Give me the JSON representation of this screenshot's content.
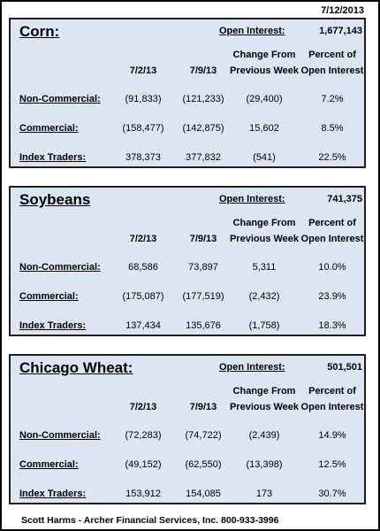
{
  "date": "7/12/2013",
  "sections": [
    {
      "title": "Corn:",
      "open_interest_label": "Open Interest:",
      "open_interest": "1,677,143",
      "headers": [
        "7/2/13",
        "7/9/13",
        "Change From",
        "Previous Week",
        "Percent of",
        "Open Interest"
      ],
      "rows": [
        {
          "label": "Non-Commercial:",
          "values": [
            "(91,833)",
            "(121,233)",
            "(29,400)",
            "7.2%"
          ]
        },
        {
          "label": "Commercial:",
          "values": [
            "(158,477)",
            "(142,875)",
            "15,602",
            "8.5%"
          ]
        },
        {
          "label": "Index Traders:",
          "values": [
            "378,373",
            "377,832",
            "(541)",
            "22.5%"
          ]
        }
      ]
    },
    {
      "title": "Soybeans",
      "open_interest_label": "Open Interest:",
      "open_interest": "741,375",
      "headers": [
        "7/2/13",
        "7/9/13",
        "Change From",
        "Previous Week",
        "Percent of",
        "Open Interest"
      ],
      "rows": [
        {
          "label": "Non-Commercial:",
          "values": [
            "68,586",
            "73,897",
            "5,311",
            "10.0%"
          ]
        },
        {
          "label": "Commercial:",
          "values": [
            "(175,087)",
            "(177,519)",
            "(2,432)",
            "23.9%"
          ]
        },
        {
          "label": "Index Traders:",
          "values": [
            "137,434",
            "135,676",
            "(1,758)",
            "18.3%"
          ]
        }
      ]
    },
    {
      "title": "Chicago Wheat:",
      "open_interest_label": "Open Interest:",
      "open_interest": "501,501",
      "headers": [
        "7/2/13",
        "7/9/13",
        "Change From",
        "Previous Week",
        "Percent of",
        "Open Interest"
      ],
      "rows": [
        {
          "label": "Non-Commercial:",
          "values": [
            "(72,283)",
            "(74,722)",
            "(2,439)",
            "14.9%"
          ]
        },
        {
          "label": "Commercial:",
          "values": [
            "(49,152)",
            "(62,550)",
            "(13,398)",
            "12.5%"
          ]
        },
        {
          "label": "Index Traders:",
          "values": [
            "153,912",
            "154,085",
            "173",
            "30.7%"
          ]
        }
      ]
    }
  ],
  "footer": "Scott Harms - Archer Financial Services, Inc.  800-933-3996"
}
